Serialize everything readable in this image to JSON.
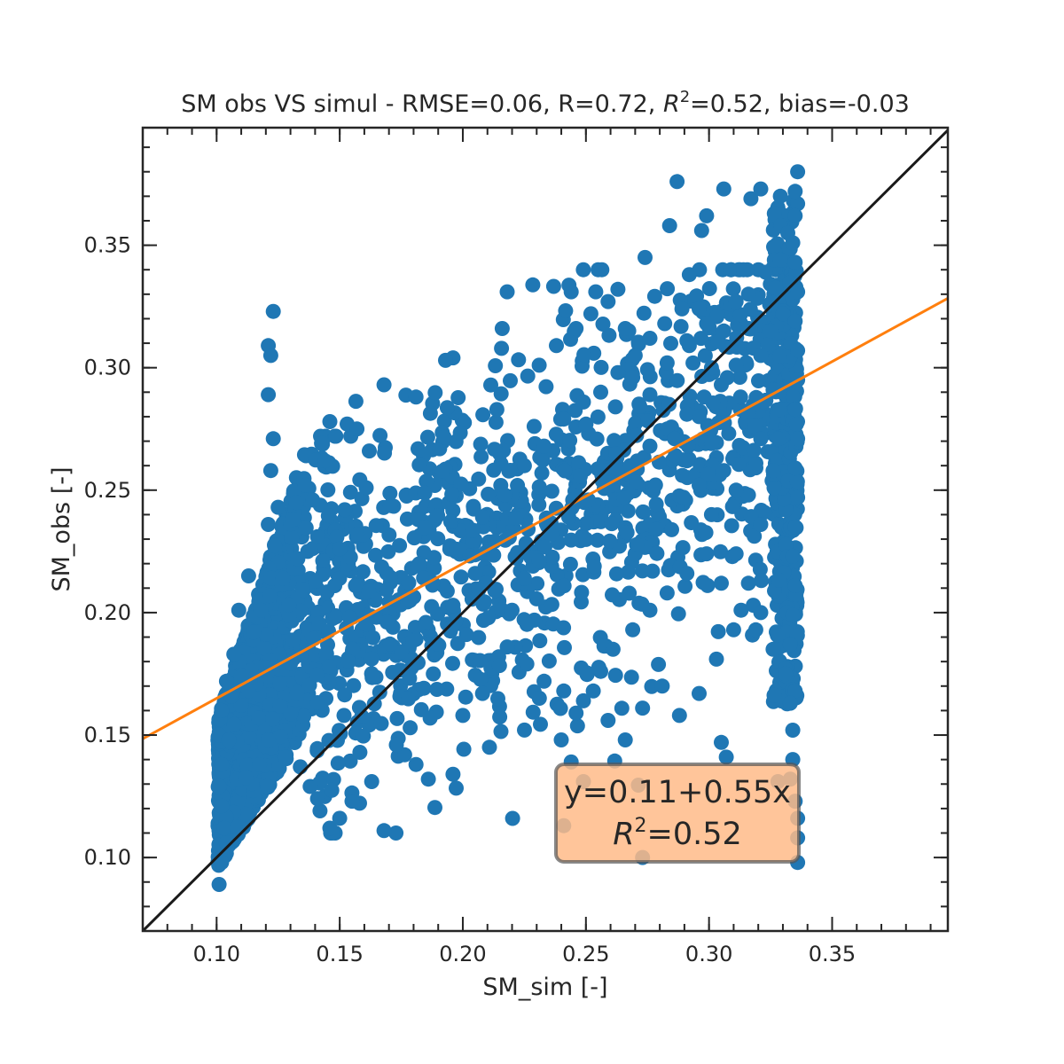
{
  "chart_data": {
    "type": "scatter",
    "title_main": "SM obs VS simul - RMSE=0.06, R=0.72, ",
    "title_r2_symbol": "R",
    "title_r2_exp": "2",
    "title_end": "=0.52, bias=-0.03",
    "xlabel": "SM_sim [-]",
    "ylabel": "SM_obs [-]",
    "xlim": [
      0.07,
      0.397
    ],
    "ylim": [
      0.07,
      0.398
    ],
    "xticks": [
      "0.10",
      "0.15",
      "0.20",
      "0.25",
      "0.30",
      "0.35"
    ],
    "yticks": [
      "0.10",
      "0.15",
      "0.20",
      "0.25",
      "0.30",
      "0.35"
    ],
    "grid": false,
    "point_color": "#1f77b4",
    "fit_color": "#ff7f0e",
    "identity_color": "#1a1a1a",
    "fit_line": {
      "intercept": 0.11,
      "slope": 0.55
    },
    "annotation": {
      "equation": "y=0.11+0.55x",
      "r2_symbol": "R",
      "r2_exp": "2",
      "r2_value": "=0.52",
      "box_color": "#ffbb88"
    },
    "sample_points": [
      [
        0.123,
        0.323
      ],
      [
        0.121,
        0.309
      ],
      [
        0.122,
        0.305
      ],
      [
        0.121,
        0.289
      ],
      [
        0.123,
        0.271
      ],
      [
        0.122,
        0.258
      ],
      [
        0.218,
        0.331
      ],
      [
        0.216,
        0.316
      ],
      [
        0.287,
        0.376
      ],
      [
        0.306,
        0.373
      ],
      [
        0.317,
        0.369
      ],
      [
        0.321,
        0.373
      ],
      [
        0.336,
        0.38
      ],
      [
        0.335,
        0.372
      ],
      [
        0.284,
        0.358
      ],
      [
        0.299,
        0.362
      ],
      [
        0.297,
        0.356
      ],
      [
        0.274,
        0.345
      ],
      [
        0.292,
        0.338
      ],
      [
        0.263,
        0.332
      ],
      [
        0.244,
        0.331
      ],
      [
        0.254,
        0.331
      ],
      [
        0.196,
        0.304
      ],
      [
        0.193,
        0.303
      ],
      [
        0.168,
        0.293
      ],
      [
        0.146,
        0.278
      ],
      [
        0.153,
        0.277
      ],
      [
        0.157,
        0.275
      ],
      [
        0.162,
        0.266
      ],
      [
        0.181,
        0.288
      ],
      [
        0.139,
        0.246
      ],
      [
        0.131,
        0.238
      ],
      [
        0.113,
        0.215
      ],
      [
        0.109,
        0.201
      ],
      [
        0.107,
        0.183
      ],
      [
        0.104,
        0.172
      ],
      [
        0.102,
        0.16
      ],
      [
        0.101,
        0.15
      ],
      [
        0.102,
        0.138
      ],
      [
        0.101,
        0.129
      ],
      [
        0.102,
        0.121
      ],
      [
        0.103,
        0.112
      ],
      [
        0.104,
        0.106
      ],
      [
        0.102,
        0.098
      ],
      [
        0.101,
        0.089
      ],
      [
        0.105,
        0.148
      ],
      [
        0.11,
        0.174
      ],
      [
        0.115,
        0.192
      ],
      [
        0.118,
        0.201
      ],
      [
        0.127,
        0.214
      ],
      [
        0.133,
        0.222
      ],
      [
        0.141,
        0.231
      ],
      [
        0.15,
        0.226
      ],
      [
        0.157,
        0.232
      ],
      [
        0.121,
        0.236
      ],
      [
        0.125,
        0.243
      ],
      [
        0.136,
        0.252
      ],
      [
        0.144,
        0.262
      ],
      [
        0.148,
        0.211
      ],
      [
        0.154,
        0.198
      ],
      [
        0.113,
        0.168
      ],
      [
        0.117,
        0.157
      ],
      [
        0.121,
        0.148
      ],
      [
        0.128,
        0.141
      ],
      [
        0.134,
        0.137
      ],
      [
        0.138,
        0.129
      ],
      [
        0.141,
        0.124
      ],
      [
        0.146,
        0.112
      ],
      [
        0.15,
        0.116
      ],
      [
        0.155,
        0.123
      ],
      [
        0.163,
        0.131
      ],
      [
        0.168,
        0.111
      ],
      [
        0.173,
        0.146
      ],
      [
        0.181,
        0.138
      ],
      [
        0.186,
        0.132
      ],
      [
        0.196,
        0.134
      ],
      [
        0.2,
        0.158
      ],
      [
        0.208,
        0.167
      ],
      [
        0.188,
        0.175
      ],
      [
        0.175,
        0.184
      ],
      [
        0.185,
        0.196
      ],
      [
        0.196,
        0.203
      ],
      [
        0.205,
        0.216
      ],
      [
        0.213,
        0.209
      ],
      [
        0.22,
        0.201
      ],
      [
        0.225,
        0.214
      ],
      [
        0.231,
        0.221
      ],
      [
        0.236,
        0.232
      ],
      [
        0.243,
        0.239
      ],
      [
        0.251,
        0.246
      ],
      [
        0.26,
        0.252
      ],
      [
        0.268,
        0.26
      ],
      [
        0.276,
        0.268
      ],
      [
        0.283,
        0.275
      ],
      [
        0.291,
        0.281
      ],
      [
        0.298,
        0.288
      ],
      [
        0.305,
        0.293
      ],
      [
        0.311,
        0.301
      ],
      [
        0.318,
        0.308
      ],
      [
        0.325,
        0.315
      ],
      [
        0.33,
        0.322
      ],
      [
        0.334,
        0.328
      ],
      [
        0.208,
        0.239
      ],
      [
        0.217,
        0.248
      ],
      [
        0.225,
        0.26
      ],
      [
        0.233,
        0.268
      ],
      [
        0.241,
        0.279
      ],
      [
        0.249,
        0.286
      ],
      [
        0.256,
        0.29
      ],
      [
        0.263,
        0.298
      ],
      [
        0.27,
        0.305
      ],
      [
        0.276,
        0.312
      ],
      [
        0.282,
        0.318
      ],
      [
        0.289,
        0.324
      ],
      [
        0.231,
        0.301
      ],
      [
        0.238,
        0.309
      ],
      [
        0.246,
        0.316
      ],
      [
        0.252,
        0.322
      ],
      [
        0.259,
        0.327
      ],
      [
        0.266,
        0.316
      ],
      [
        0.269,
        0.296
      ],
      [
        0.276,
        0.289
      ],
      [
        0.283,
        0.302
      ],
      [
        0.292,
        0.309
      ],
      [
        0.299,
        0.318
      ],
      [
        0.309,
        0.326
      ],
      [
        0.316,
        0.33
      ],
      [
        0.323,
        0.339
      ],
      [
        0.329,
        0.344
      ],
      [
        0.334,
        0.351
      ],
      [
        0.335,
        0.362
      ],
      [
        0.332,
        0.355
      ],
      [
        0.218,
        0.186
      ],
      [
        0.226,
        0.179
      ],
      [
        0.233,
        0.172
      ],
      [
        0.241,
        0.168
      ],
      [
        0.249,
        0.164
      ],
      [
        0.256,
        0.176
      ],
      [
        0.261,
        0.185
      ],
      [
        0.269,
        0.193
      ],
      [
        0.276,
        0.201
      ],
      [
        0.283,
        0.208
      ],
      [
        0.291,
        0.216
      ],
      [
        0.299,
        0.224
      ],
      [
        0.305,
        0.212
      ],
      [
        0.313,
        0.201
      ],
      [
        0.319,
        0.193
      ],
      [
        0.326,
        0.185
      ],
      [
        0.331,
        0.177
      ],
      [
        0.335,
        0.168
      ],
      [
        0.24,
        0.148
      ],
      [
        0.246,
        0.159
      ],
      [
        0.253,
        0.168
      ],
      [
        0.259,
        0.156
      ],
      [
        0.266,
        0.148
      ],
      [
        0.273,
        0.161
      ],
      [
        0.281,
        0.17
      ],
      [
        0.288,
        0.158
      ],
      [
        0.296,
        0.167
      ],
      [
        0.303,
        0.181
      ],
      [
        0.31,
        0.193
      ],
      [
        0.318,
        0.203
      ],
      [
        0.241,
        0.113
      ],
      [
        0.244,
        0.139
      ],
      [
        0.249,
        0.131
      ],
      [
        0.273,
        0.1
      ],
      [
        0.305,
        0.147
      ],
      [
        0.307,
        0.141
      ],
      [
        0.336,
        0.098
      ],
      [
        0.336,
        0.108
      ],
      [
        0.336,
        0.116
      ],
      [
        0.335,
        0.123
      ],
      [
        0.333,
        0.132
      ],
      [
        0.328,
        0.131
      ],
      [
        0.334,
        0.14
      ],
      [
        0.334,
        0.152
      ],
      [
        0.333,
        0.163
      ],
      [
        0.331,
        0.175
      ],
      [
        0.333,
        0.187
      ],
      [
        0.334,
        0.199
      ],
      [
        0.335,
        0.211
      ],
      [
        0.334,
        0.223
      ],
      [
        0.335,
        0.235
      ],
      [
        0.336,
        0.247
      ],
      [
        0.335,
        0.259
      ],
      [
        0.336,
        0.271
      ],
      [
        0.335,
        0.283
      ],
      [
        0.336,
        0.295
      ],
      [
        0.336,
        0.307
      ],
      [
        0.335,
        0.319
      ],
      [
        0.336,
        0.331
      ],
      [
        0.335,
        0.343
      ],
      [
        0.321,
        0.2
      ],
      [
        0.316,
        0.212
      ],
      [
        0.311,
        0.224
      ],
      [
        0.321,
        0.236
      ],
      [
        0.316,
        0.248
      ],
      [
        0.326,
        0.258
      ],
      [
        0.321,
        0.271
      ],
      [
        0.316,
        0.282
      ],
      [
        0.326,
        0.291
      ],
      [
        0.321,
        0.305
      ],
      [
        0.316,
        0.316
      ],
      [
        0.311,
        0.327
      ],
      [
        0.301,
        0.24
      ],
      [
        0.296,
        0.252
      ],
      [
        0.291,
        0.262
      ],
      [
        0.286,
        0.271
      ],
      [
        0.296,
        0.28
      ],
      [
        0.301,
        0.269
      ],
      [
        0.306,
        0.258
      ],
      [
        0.311,
        0.25
      ],
      [
        0.301,
        0.3
      ],
      [
        0.291,
        0.311
      ],
      [
        0.306,
        0.315
      ],
      [
        0.296,
        0.324
      ]
    ]
  }
}
